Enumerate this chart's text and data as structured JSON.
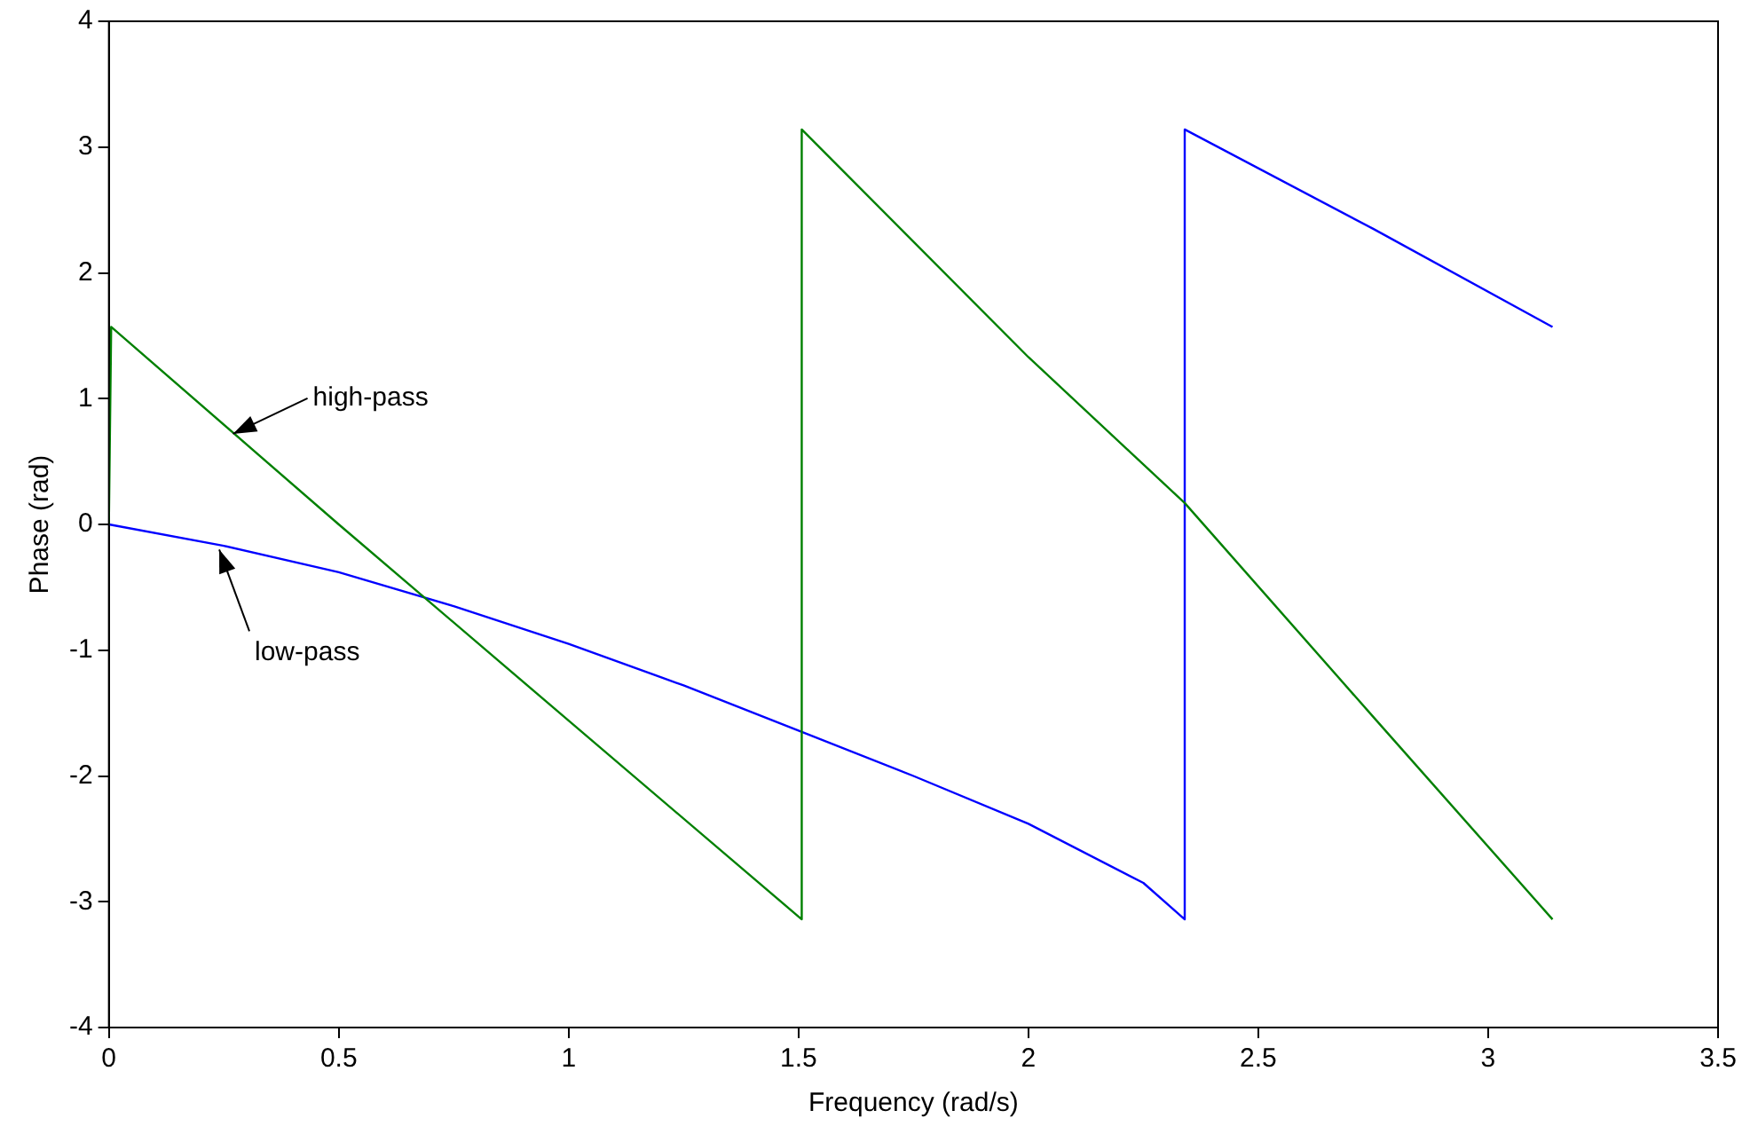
{
  "chart_data": {
    "type": "line",
    "xlabel": "Frequency (rad/s)",
    "ylabel": "Phase (rad)",
    "xlim": [
      0,
      3.5
    ],
    "xticks": [
      0,
      0.5,
      1,
      1.5,
      2,
      2.5,
      3,
      3.5
    ],
    "ylim": [
      -4,
      4
    ],
    "yticks": [
      -4,
      -3,
      -2,
      -1,
      0,
      1,
      2,
      3,
      4
    ],
    "grid": false,
    "legend": false,
    "marker": "none",
    "line_style": "solid",
    "series": [
      {
        "color": "#008000",
        "x": [
          0,
          0.005,
          0.5,
          1.0,
          1.507,
          1.507,
          2.0,
          2.34,
          2.75,
          3.14
        ],
        "values": [
          0,
          1.57,
          0.0,
          -1.56,
          -3.14,
          3.14,
          1.33,
          0.17,
          -1.53,
          -3.14
        ]
      },
      {
        "color": "#0000ff",
        "x": [
          0,
          0.25,
          0.5,
          0.75,
          1.0,
          1.25,
          1.5,
          1.75,
          2.0,
          2.25,
          2.34,
          2.34,
          2.75,
          3.14
        ],
        "values": [
          0,
          -0.17,
          -0.38,
          -0.65,
          -0.95,
          -1.28,
          -1.64,
          -2.0,
          -2.38,
          -2.85,
          -3.14,
          3.14,
          2.35,
          1.57
        ]
      }
    ],
    "annotations": [
      {
        "text": "high-pass",
        "x": 0.27,
        "y": 0.72
      },
      {
        "text": "low-pass",
        "x": 0.24,
        "y": -0.2
      }
    ]
  }
}
